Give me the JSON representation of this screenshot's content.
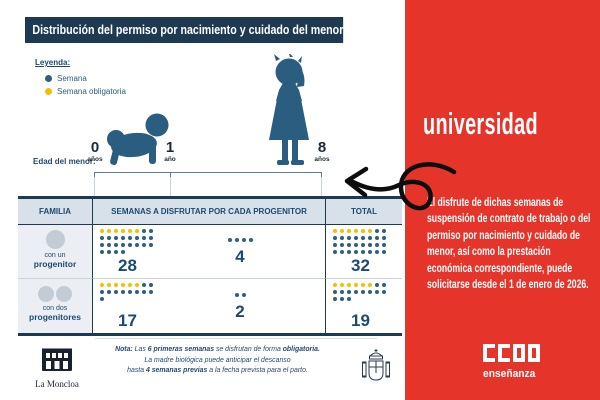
{
  "colors": {
    "week": "#2d5f85",
    "obligatory": "#f2c000",
    "accent_yellow": "#ffd100",
    "navy": "#1e3a53",
    "red": "#e5352b"
  },
  "chart_data": {
    "type": "table",
    "title": "Distribución del permiso por nacimiento y cuidado del menor",
    "legend": [
      "Semana",
      "Semana obligatoria"
    ],
    "x_axis": {
      "label": "Edad del menor:",
      "ticks": [
        "0 años",
        "1 año",
        "8 años"
      ]
    },
    "categories": [
      "con un progenitor",
      "con dos progenitores"
    ],
    "series": [
      {
        "name": "Semanas a disfrutar por cada progenitor (0 a 1 año)",
        "values": [
          28,
          17
        ],
        "obligatory_weeks": [
          6,
          6
        ]
      },
      {
        "name": "Semanas a disfrutar por cada progenitor (1 a 8 años)",
        "values": [
          4,
          2
        ],
        "obligatory_weeks": [
          0,
          0
        ]
      },
      {
        "name": "Total",
        "values": [
          32,
          19
        ],
        "obligatory_weeks": [
          6,
          6
        ]
      }
    ]
  },
  "infographic": {
    "title": "Distribución del permiso por nacimiento y cuidado del menor",
    "legend": {
      "heading": "Leyenda:",
      "week_label": "Semana",
      "obligatory_label": "Semana obligatoria"
    },
    "timeline": {
      "label": "Edad del menor:",
      "markers": [
        {
          "value": "0",
          "unit": "años"
        },
        {
          "value": "1",
          "unit": "año"
        },
        {
          "value": "8",
          "unit": "años"
        }
      ]
    },
    "table": {
      "col_family": "FAMILIA",
      "col_weeks": "SEMANAS A DISFRUTAR POR CADA PROGENITOR",
      "col_total": "TOTAL",
      "rows": [
        {
          "label_top": "con un",
          "label_bottom": "progenitor"
        },
        {
          "label_top": "con dos",
          "label_bottom": "progenitores"
        }
      ],
      "cells": {
        "r1c1": {
          "total": 28,
          "yellow": 6
        },
        "r1c2": {
          "total": 4,
          "yellow": 0
        },
        "r1t": {
          "total": 32,
          "yellow": 6
        },
        "r2c1": {
          "total": 17,
          "yellow": 6
        },
        "r2c2": {
          "total": 2,
          "yellow": 0
        },
        "r2t": {
          "total": 19,
          "yellow": 6
        }
      }
    },
    "note": {
      "label": "Nota:",
      "l1a": " Las ",
      "l1b": "6 primeras semanas",
      "l1c": " se disfrutan de forma ",
      "l1d": "obligatoria.",
      "l2": "La madre biológica puede anticipar el descanso",
      "l3a": "hasta ",
      "l3b": "4 semanas previas",
      "l3c": " a la fecha prevista para el parto."
    },
    "moncloa_label": "La Moncloa"
  },
  "panel": {
    "heading": "universidad",
    "body": "El disfrute de dichas semanas de suspensión de contrato de trabajo o del permiso por nacimiento y cuidado de menor, así como la prestación económica correspondiente, puede solicitarse desde el 1 de enero de 2026.",
    "logo_brand": "CCOO",
    "logo_sub": "enseñanza"
  }
}
